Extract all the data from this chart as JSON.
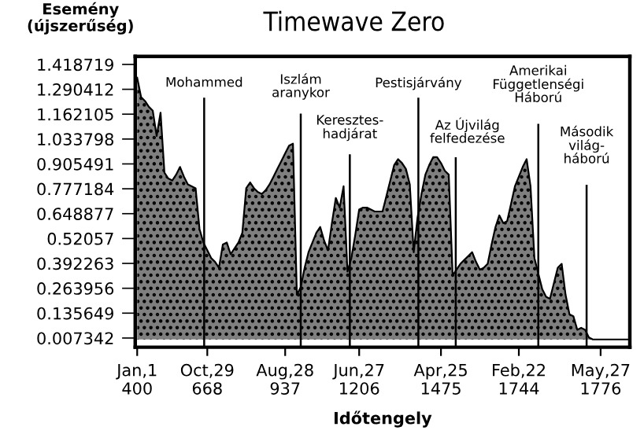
{
  "chart_data": {
    "type": "area",
    "title": "Timewave Zero",
    "xlabel": "Időtengely",
    "ylabel": "Esemény\n(újszerűség)",
    "categories": [
      "Jan,1\n400",
      null,
      null,
      null,
      null,
      null,
      null,
      null,
      null,
      null,
      null,
      null,
      null,
      null,
      null,
      null,
      null,
      null,
      "Oct,29\n668",
      null,
      null,
      null,
      null,
      null,
      null,
      null,
      null,
      null,
      null,
      null,
      null,
      null,
      null,
      null,
      null,
      null,
      null,
      null,
      "Aug,28\n937",
      null,
      null,
      null,
      null,
      null,
      null,
      null,
      null,
      null,
      null,
      null,
      null,
      null,
      null,
      null,
      null,
      null,
      null,
      "Jun,27\n1206",
      null,
      null,
      null,
      null,
      null,
      null,
      null,
      null,
      null,
      null,
      null,
      null,
      null,
      null,
      null,
      null,
      null,
      null,
      null,
      null,
      "Apr,25\n1475",
      null,
      null,
      null,
      null,
      null,
      null,
      null,
      null,
      null,
      null,
      null,
      null,
      null,
      null,
      null,
      null,
      null,
      null,
      null,
      "Feb,22\n1744",
      null,
      null,
      null,
      null,
      null,
      null,
      null,
      null,
      null,
      null,
      null,
      null,
      null,
      null,
      null,
      null,
      null,
      null,
      null,
      null,
      "May,27\n1776",
      null,
      null,
      null,
      null,
      null,
      null,
      null
    ],
    "series": [
      {
        "color": "#7f7f7f",
        "values": [
          1.35,
          1.25,
          1.23,
          1.2,
          1.18,
          1.05,
          1.17,
          0.86,
          0.83,
          0.82,
          0.85,
          0.89,
          0.84,
          0.8,
          0.79,
          0.78,
          0.57,
          0.5,
          0.46,
          0.42,
          0.4,
          0.37,
          0.49,
          0.5,
          0.44,
          0.47,
          0.5,
          0.55,
          0.78,
          0.81,
          0.78,
          0.76,
          0.75,
          0.77,
          0.8,
          0.84,
          0.88,
          0.92,
          0.96,
          1.0,
          1.01,
          0.23,
          0.27,
          0.37,
          0.45,
          0.5,
          0.55,
          0.58,
          0.51,
          0.46,
          0.6,
          0.73,
          0.68,
          0.79,
          0.35,
          0.42,
          0.54,
          0.67,
          0.68,
          0.68,
          0.67,
          0.66,
          0.66,
          0.66,
          0.74,
          0.82,
          0.9,
          0.93,
          0.91,
          0.88,
          0.8,
          0.45,
          0.63,
          0.75,
          0.85,
          0.9,
          0.94,
          0.94,
          0.91,
          0.87,
          0.85,
          0.33,
          0.36,
          0.39,
          0.41,
          0.43,
          0.45,
          0.4,
          0.36,
          0.37,
          0.39,
          0.49,
          0.58,
          0.64,
          0.6,
          0.61,
          0.7,
          0.79,
          0.84,
          0.89,
          0.93,
          0.79,
          0.42,
          0.34,
          0.26,
          0.22,
          0.21,
          0.29,
          0.37,
          0.39,
          0.23,
          0.13,
          0.12,
          0.05,
          0.06,
          0.05,
          0.01,
          0,
          0,
          0,
          0,
          0,
          0,
          0,
          0,
          0,
          0
        ]
      }
    ],
    "ylim": [
      -0.04,
      1.46
    ],
    "yticks": [
      0.007342,
      0.135649,
      0.263956,
      0.392263,
      0.52057,
      0.648877,
      0.777184,
      0.905491,
      1.033798,
      1.162105,
      1.290412,
      1.418719
    ],
    "annotations": [
      "Mohammed",
      "Iszlám\naranykor",
      "Keresztes-\nhadjárat",
      "Pestisjárvány",
      "Az Újvilág\nfelfedezése",
      "Amerikai\nFüggetlenségi\nHáború",
      "Második\nvilág-\nháború"
    ],
    "grid": false,
    "legend": false
  }
}
